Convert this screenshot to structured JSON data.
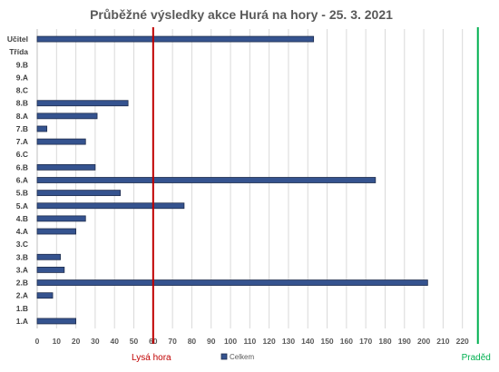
{
  "chart_data": {
    "type": "bar",
    "orientation": "horizontal",
    "title": "Průběžné výsledky akce Hurá na hory - 25. 3. 2021",
    "categories": [
      "Učitel",
      "Třída",
      "9.B",
      "9.A",
      "8.C",
      "8.B",
      "8.A",
      "7.B",
      "7.A",
      "6.C",
      "6.B",
      "6.A",
      "5.B",
      "5.A",
      "4.B",
      "4.A",
      "3.C",
      "3.B",
      "3.A",
      "2.B",
      "2.A",
      "1.B",
      "1.A"
    ],
    "series": [
      {
        "name": "Celkem",
        "values": [
          143,
          0,
          0,
          0,
          0,
          47,
          31,
          5,
          25,
          0,
          30,
          175,
          43,
          76,
          25,
          20,
          0,
          12,
          14,
          202,
          8,
          0,
          20
        ]
      }
    ],
    "xlim": [
      0,
      230
    ],
    "x_ticks": [
      0,
      10,
      20,
      30,
      40,
      50,
      60,
      70,
      80,
      90,
      100,
      110,
      120,
      130,
      140,
      150,
      160,
      170,
      180,
      190,
      200,
      210,
      220
    ],
    "grid": "vertical",
    "legend": "bottom",
    "bar_color": "#35538F",
    "bar_stroke": "#1F2D4D",
    "reference_lines": [
      {
        "label": "Lysá hora",
        "value": 60,
        "color": "#C00000"
      },
      {
        "label": "Praděd",
        "value": 228,
        "color": "#00B050"
      }
    ]
  }
}
